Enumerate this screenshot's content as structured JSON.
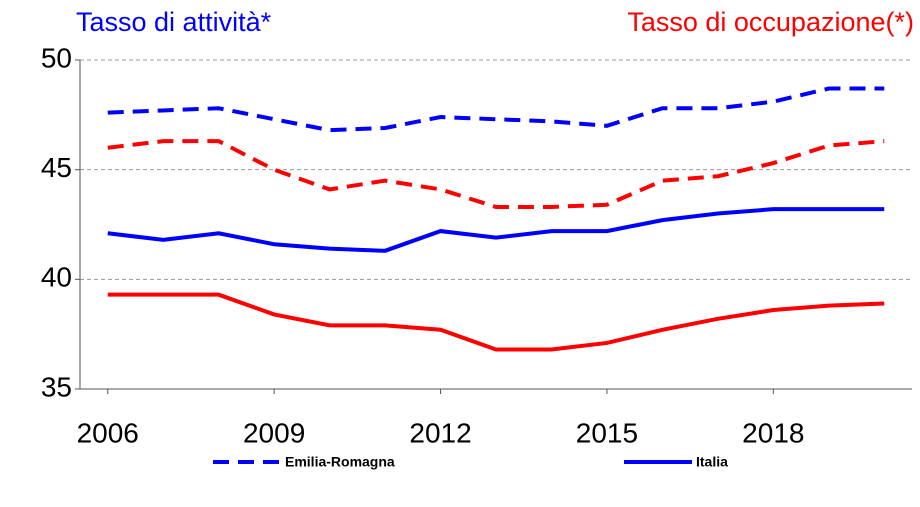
{
  "chart_data": {
    "type": "line",
    "titles": [
      {
        "text": "Tasso di attività*",
        "color": "#0000ff"
      },
      {
        "text": "Tasso di occupazione(*)",
        "color": "#ff0000"
      }
    ],
    "x": [
      2006,
      2007,
      2008,
      2009,
      2010,
      2011,
      2012,
      2013,
      2014,
      2015,
      2016,
      2017,
      2018,
      2019,
      2020
    ],
    "series": [
      {
        "color": "#0000ff",
        "style": "dashed",
        "values": [
          47.6,
          47.7,
          47.8,
          47.3,
          46.8,
          46.9,
          47.4,
          47.3,
          47.2,
          47.0,
          47.8,
          47.8,
          48.1,
          48.7,
          48.7
        ]
      },
      {
        "color": "#ff0000",
        "style": "dashed",
        "values": [
          46.0,
          46.3,
          46.3,
          45.0,
          44.1,
          44.5,
          44.1,
          43.3,
          43.3,
          43.4,
          44.5,
          44.7,
          45.3,
          46.1,
          46.3
        ]
      },
      {
        "color": "#0000ff",
        "style": "solid",
        "values": [
          42.1,
          41.8,
          42.1,
          41.6,
          41.4,
          41.3,
          42.2,
          41.9,
          42.2,
          42.2,
          42.7,
          43.0,
          43.2,
          43.2,
          43.2
        ]
      },
      {
        "color": "#ff0000",
        "style": "solid",
        "values": [
          39.3,
          39.3,
          39.3,
          38.4,
          37.9,
          37.9,
          37.7,
          36.8,
          36.8,
          37.1,
          37.7,
          38.2,
          38.6,
          38.8,
          38.9
        ]
      }
    ],
    "legend": [
      {
        "name": "Emilia-Romagna",
        "style": "dashed",
        "color": "#0000ff"
      },
      {
        "name": "Italia",
        "style": "solid",
        "color": "#0000ff"
      }
    ],
    "xlim": [
      2005.5,
      2020.5
    ],
    "xticks": [
      2006,
      2009,
      2012,
      2015,
      2018
    ],
    "ylim": [
      35,
      50
    ],
    "yticks": [
      35,
      40,
      45,
      50
    ],
    "grid": true
  }
}
